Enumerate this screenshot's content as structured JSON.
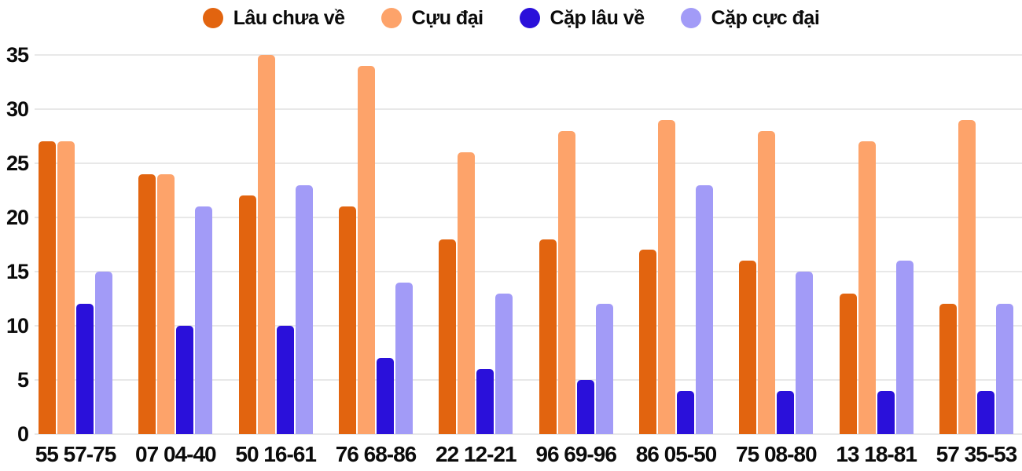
{
  "chart_data": {
    "type": "bar",
    "title": "",
    "categories": [
      "55 57-75",
      "07 04-40",
      "50 16-61",
      "76 68-86",
      "22 12-21",
      "96 69-96",
      "86 05-50",
      "75 08-80",
      "13 18-81",
      "57 35-53"
    ],
    "series": [
      {
        "name": "Lâu chưa về",
        "color": "#e2640f",
        "values": [
          27,
          24,
          22,
          21,
          18,
          18,
          17,
          16,
          13,
          12
        ]
      },
      {
        "name": "Cựu đại",
        "color": "#fda36a",
        "values": [
          27,
          24,
          35,
          34,
          26,
          28,
          29,
          28,
          27,
          29
        ]
      },
      {
        "name": "Cặp lâu về",
        "color": "#2a10da",
        "values": [
          12,
          10,
          10,
          7,
          6,
          5,
          4,
          4,
          4,
          4
        ]
      },
      {
        "name": "Cặp cực đại",
        "color": "#a29bf7",
        "values": [
          15,
          21,
          23,
          14,
          13,
          12,
          23,
          15,
          16,
          12
        ]
      }
    ],
    "xlabel": "",
    "ylabel": "",
    "ylim": [
      0,
      35
    ],
    "yticks": [
      0,
      5,
      10,
      15,
      20,
      25,
      30,
      35
    ],
    "grid": true,
    "legend_position": "top",
    "colors": {
      "grid": "#e8e8e8",
      "text": "#0b0b0b",
      "background": "#ffffff"
    }
  }
}
